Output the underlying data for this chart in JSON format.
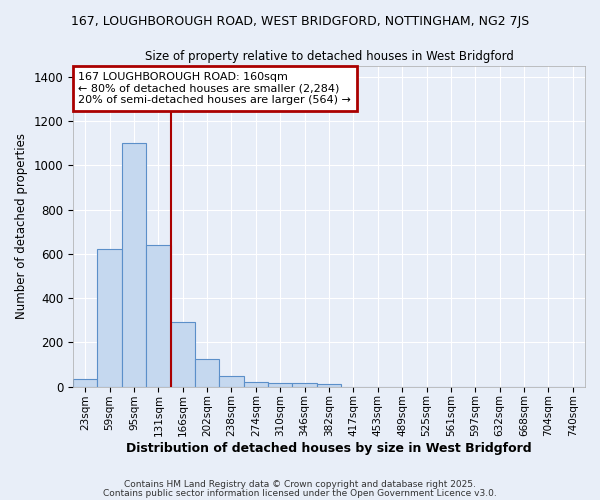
{
  "title1": "167, LOUGHBOROUGH ROAD, WEST BRIDGFORD, NOTTINGHAM, NG2 7JS",
  "title2": "Size of property relative to detached houses in West Bridgford",
  "xlabel": "Distribution of detached houses by size in West Bridgford",
  "ylabel": "Number of detached properties",
  "bin_labels": [
    "23sqm",
    "59sqm",
    "95sqm",
    "131sqm",
    "166sqm",
    "202sqm",
    "238sqm",
    "274sqm",
    "310sqm",
    "346sqm",
    "382sqm",
    "417sqm",
    "453sqm",
    "489sqm",
    "525sqm",
    "561sqm",
    "597sqm",
    "632sqm",
    "668sqm",
    "704sqm",
    "740sqm"
  ],
  "bin_values": [
    35,
    620,
    1100,
    640,
    290,
    125,
    50,
    20,
    15,
    15,
    10,
    0,
    0,
    0,
    0,
    0,
    0,
    0,
    0,
    0,
    0
  ],
  "bar_color": "#c5d8ef",
  "bar_edge_color": "#5b8fc9",
  "red_line_color": "#aa0000",
  "annotation_text": "167 LOUGHBOROUGH ROAD: 160sqm\n← 80% of detached houses are smaller (2,284)\n20% of semi-detached houses are larger (564) →",
  "annotation_box_color": "#ffffff",
  "annotation_box_edge_color": "#aa0000",
  "ylim": [
    0,
    1450
  ],
  "background_color": "#e8eef8",
  "grid_color": "#ffffff",
  "footer1": "Contains HM Land Registry data © Crown copyright and database right 2025.",
  "footer2": "Contains public sector information licensed under the Open Government Licence v3.0."
}
